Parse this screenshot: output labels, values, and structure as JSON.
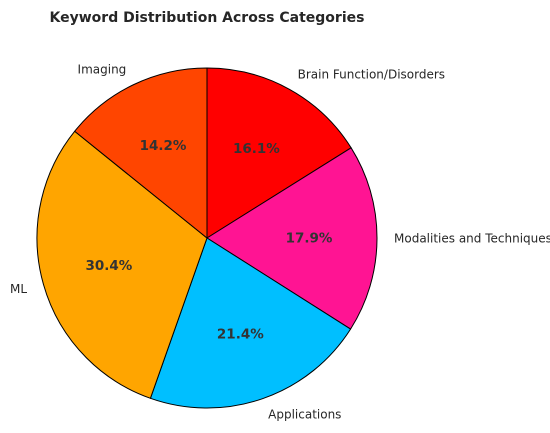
{
  "chart_data": {
    "type": "pie",
    "title": "Keyword Distribution Across Categories",
    "slices": [
      {
        "label": "Brain Function/Disorders",
        "value": 16.1,
        "pct_label": "16.1%",
        "color": "#ff0000"
      },
      {
        "label": "Modalities and Techniques",
        "value": 17.9,
        "pct_label": "17.9%",
        "color": "#ff1493"
      },
      {
        "label": "Applications",
        "value": 21.4,
        "pct_label": "21.4%",
        "color": "#00bfff"
      },
      {
        "label": "ML",
        "value": 30.4,
        "pct_label": "30.4%",
        "color": "#ffa500"
      },
      {
        "label": "Imaging",
        "value": 14.2,
        "pct_label": "14.2%",
        "color": "#ff4500"
      }
    ],
    "start_angle_deg": 90,
    "direction": "clockwise",
    "edge_color": "#000000"
  }
}
